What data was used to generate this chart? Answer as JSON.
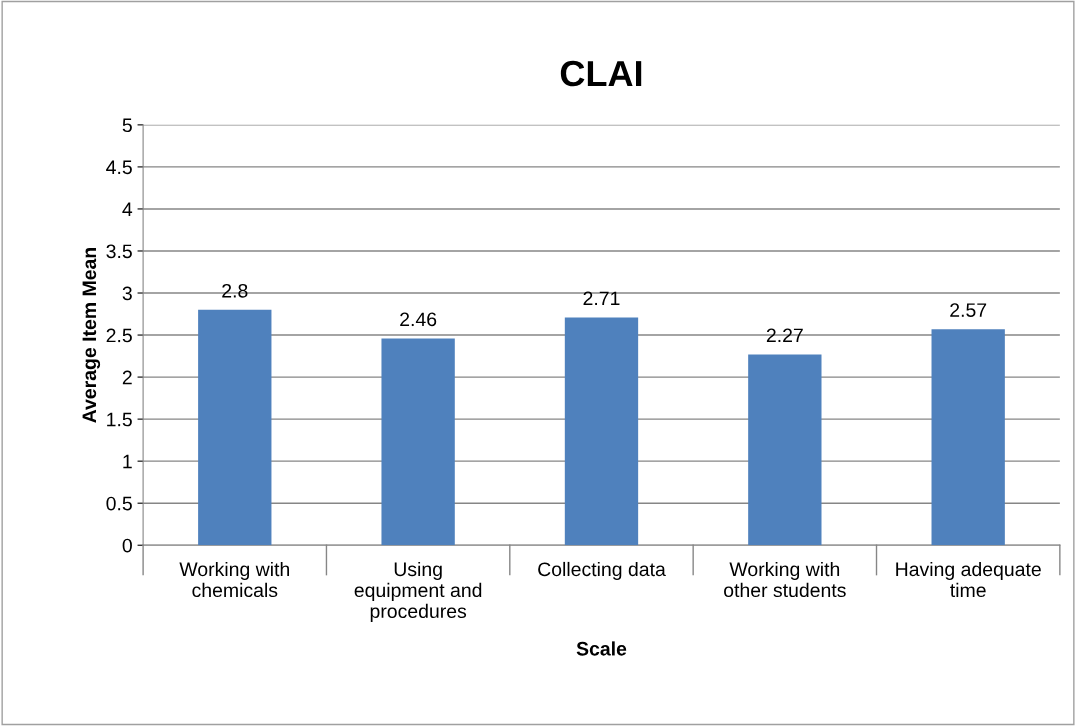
{
  "chart_data": {
    "type": "bar",
    "title": "CLAI",
    "xlabel": "Scale",
    "ylabel": "Average Item Mean",
    "categories": [
      "Working with\nchemicals",
      "Using\nequipment and\nprocedures",
      "Collecting data",
      "Working with\nother students",
      "Having adequate\ntime"
    ],
    "values": [
      2.8,
      2.46,
      2.71,
      2.27,
      2.57
    ],
    "color": "#4f81bd",
    "ylim": [
      0,
      5
    ],
    "yticks": [
      0,
      0.5,
      1,
      1.5,
      2,
      2.5,
      3,
      3.5,
      4,
      4.5,
      5
    ],
    "grid": "y",
    "data_labels": true
  }
}
